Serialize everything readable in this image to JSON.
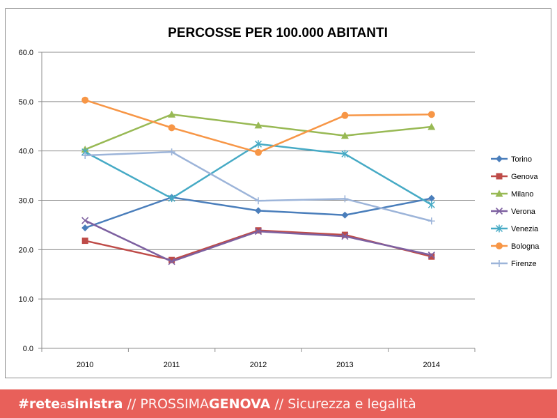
{
  "chart_data": {
    "type": "line",
    "title": "PERCOSSE PER 100.000 ABITANTI",
    "xlabel": "",
    "ylabel": "",
    "categories": [
      "2010",
      "2011",
      "2012",
      "2013",
      "2014"
    ],
    "ylim": [
      0,
      60
    ],
    "yticks": [
      "0.0",
      "10.0",
      "20.0",
      "30.0",
      "40.0",
      "50.0",
      "60.0"
    ],
    "grid": "horizontal",
    "legend_position": "right",
    "series": [
      {
        "name": "Torino",
        "color": "#4a7ebb",
        "marker": "diamond",
        "values": [
          24.4,
          30.6,
          27.9,
          27.0,
          30.4
        ]
      },
      {
        "name": "Genova",
        "color": "#be4b48",
        "marker": "square",
        "values": [
          21.8,
          17.9,
          23.9,
          23.0,
          18.6
        ]
      },
      {
        "name": "Milano",
        "color": "#98b954",
        "marker": "triangle",
        "values": [
          40.3,
          47.4,
          45.2,
          43.1,
          44.9
        ]
      },
      {
        "name": "Verona",
        "color": "#7d60a0",
        "marker": "x",
        "values": [
          25.9,
          17.6,
          23.7,
          22.7,
          18.9
        ]
      },
      {
        "name": "Venezia",
        "color": "#46aac5",
        "marker": "star",
        "values": [
          39.8,
          30.4,
          41.4,
          39.4,
          29.1
        ]
      },
      {
        "name": "Bologna",
        "color": "#f79646",
        "marker": "circle",
        "values": [
          50.3,
          44.7,
          39.7,
          47.2,
          47.4
        ]
      },
      {
        "name": "Firenze",
        "color": "#9cb4d9",
        "marker": "plus",
        "values": [
          39.1,
          39.8,
          29.9,
          30.3,
          25.8
        ]
      }
    ]
  },
  "footer": {
    "hashtag_bold": "#rete",
    "hashtag_small": "a",
    "hashtag_end": "sinistra",
    "sep1": " // ",
    "brand_light": "PROSSIMA",
    "brand_bold": "GENOVA",
    "sep2": " // ",
    "subtitle": "Sicurezza e legalità"
  }
}
